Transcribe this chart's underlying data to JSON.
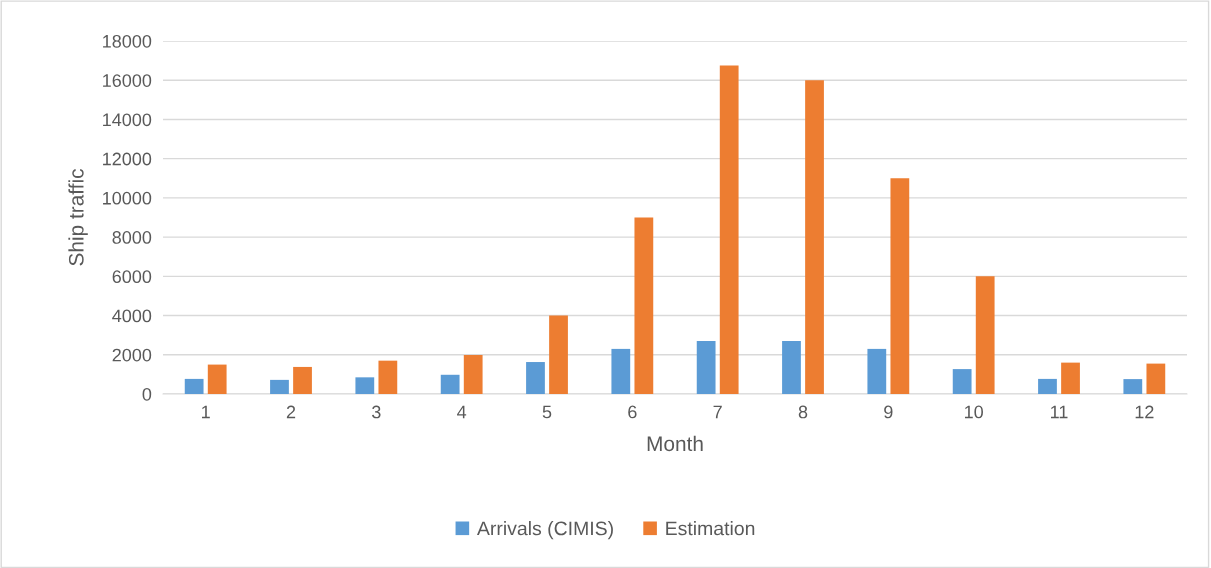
{
  "chart_data": {
    "type": "bar",
    "xlabel": "Month",
    "ylabel": "Ship traffic",
    "categories": [
      "1",
      "2",
      "3",
      "4",
      "5",
      "6",
      "7",
      "8",
      "9",
      "10",
      "11",
      "12"
    ],
    "series": [
      {
        "name": "Arrivals (CIMIS)",
        "color": "#5b9bd5",
        "values": [
          770,
          720,
          850,
          980,
          1630,
          2300,
          2700,
          2700,
          2300,
          1270,
          770,
          760
        ]
      },
      {
        "name": "Estimation",
        "color": "#ed7d31",
        "values": [
          1500,
          1380,
          1700,
          1990,
          4000,
          9000,
          16750,
          16000,
          11000,
          6000,
          1600,
          1550
        ]
      }
    ],
    "ylim": [
      0,
      18000
    ],
    "yticks": [
      0,
      2000,
      4000,
      6000,
      8000,
      10000,
      12000,
      14000,
      16000,
      18000
    ],
    "grid": "y",
    "legend": "bottom"
  }
}
